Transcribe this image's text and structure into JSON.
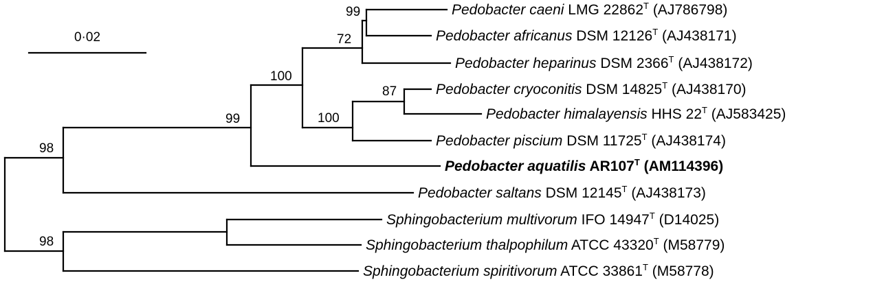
{
  "scale_bar": {
    "label": "0·02"
  },
  "taxa": [
    {
      "id": "caeni",
      "genus": "Pedobacter caeni",
      "strain": " LMG 22862",
      "sup": "T",
      "acc": " (AJ786798)",
      "bold": false
    },
    {
      "id": "africanus",
      "genus": "Pedobacter africanus",
      "strain": " DSM 12126",
      "sup": "T",
      "acc": " (AJ438171)",
      "bold": false
    },
    {
      "id": "heparinus",
      "genus": "Pedobacter heparinus",
      "strain": " DSM 2366",
      "sup": "T",
      "acc": " (AJ438172)",
      "bold": false
    },
    {
      "id": "cryoconitis",
      "genus": "Pedobacter cryoconitis",
      "strain": " DSM 14825",
      "sup": "T",
      "acc": " (AJ438170)",
      "bold": false
    },
    {
      "id": "himalayensis",
      "genus": "Pedobacter himalayensis",
      "strain": " HHS 22",
      "sup": "T",
      "acc": " (AJ583425)",
      "bold": false
    },
    {
      "id": "piscium",
      "genus": "Pedobacter piscium",
      "strain": " DSM 11725",
      "sup": "T",
      "acc": " (AJ438174)",
      "bold": false
    },
    {
      "id": "aquatilis",
      "genus": "Pedobacter aquatilis",
      "strain": " AR107",
      "sup": "T",
      "acc": " (AM114396)",
      "bold": true
    },
    {
      "id": "saltans",
      "genus": "Pedobacter saltans",
      "strain": " DSM 12145",
      "sup": "T",
      "acc": " (AJ438173)",
      "bold": false
    },
    {
      "id": "multivorum",
      "genus": "Sphingobacterium multivorum",
      "strain": " IFO 14947",
      "sup": "T",
      "acc": " (D14025)",
      "bold": false
    },
    {
      "id": "thalpophilum",
      "genus": "Sphingobacterium thalpophilum",
      "strain": " ATCC 43320",
      "sup": "T",
      "acc": " (M58779)",
      "bold": false
    },
    {
      "id": "spiritivorum",
      "genus": "Sphingobacterium spiritivorum",
      "strain": " ATCC 33861",
      "sup": "T",
      "acc": " (M58778)",
      "bold": false
    }
  ],
  "bootstrap": {
    "caeni_africanus": "99",
    "heparinus_clade": "72",
    "cryo_hima": "87",
    "piscium_clade": "100",
    "upper_clade": "100",
    "aquatilis_clade": "99",
    "pedobacter_root": "98",
    "sphingo_root": "98"
  }
}
